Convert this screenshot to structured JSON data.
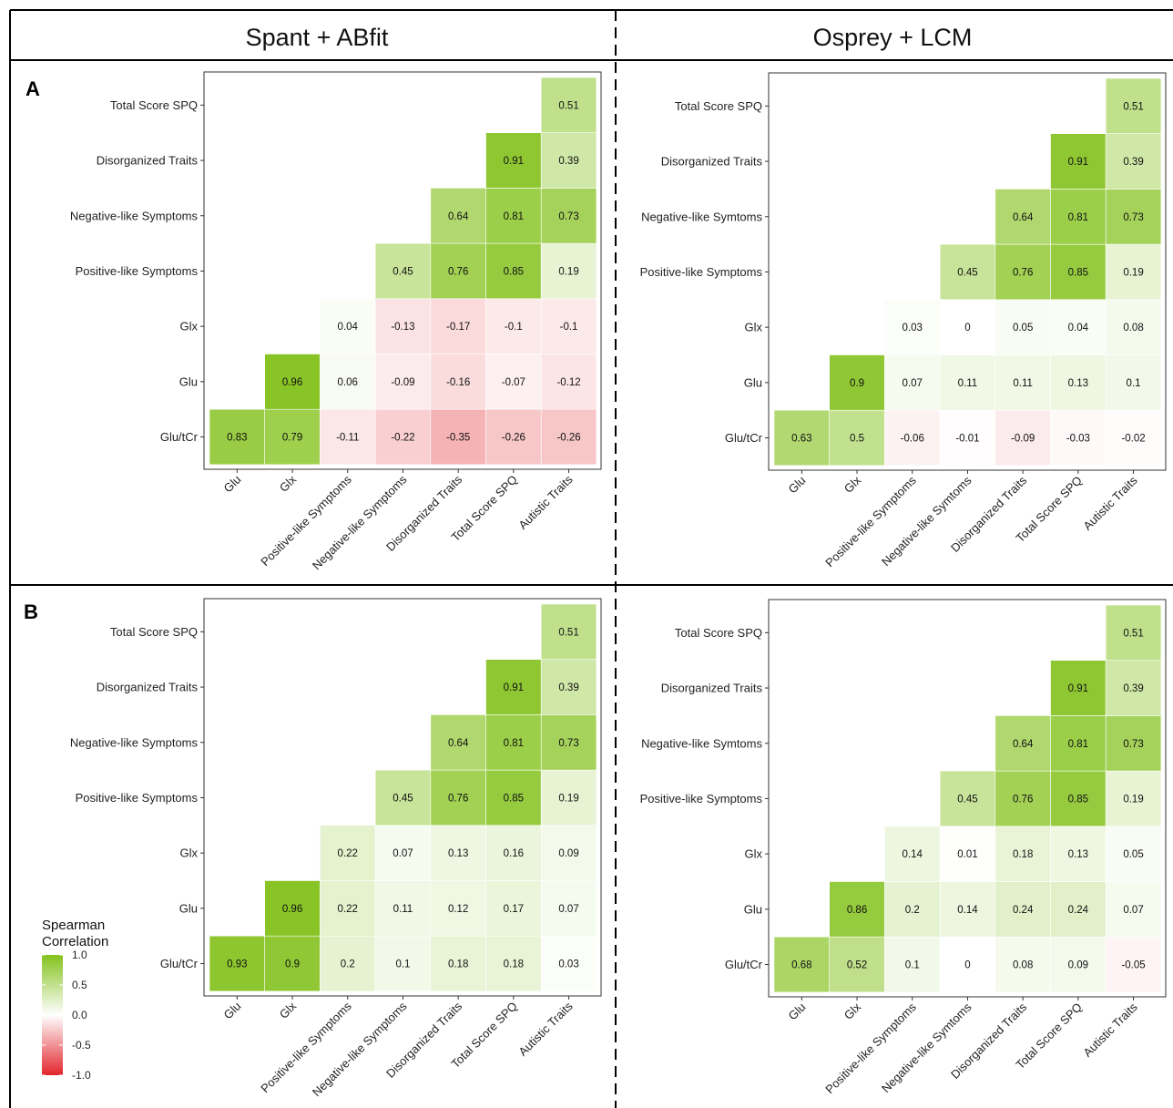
{
  "column_titles": [
    "Spant + ABfit",
    "Osprey + LCM"
  ],
  "row_labels": [
    "A",
    "B"
  ],
  "legend": {
    "title_line1": "Spearman",
    "title_line2": "Correlation",
    "ticks": [
      "1.0",
      "0.5",
      "0.0",
      "-0.5",
      "-1.0"
    ],
    "colors": {
      "high": "#84c21e",
      "mid": "#ffffff",
      "low": "#e2262d"
    }
  },
  "chart_data": [
    {
      "type": "heatmap",
      "panel": "A",
      "column": "Spant + ABfit",
      "x_labels": [
        "Glu",
        "Glx",
        "Positive-like Symptoms",
        "Negative-like Symptoms",
        "Disorganized Traits",
        "Total Score SPQ",
        "Autistic Traits"
      ],
      "y_labels": [
        "Glu/tCr",
        "Glu",
        "Glx",
        "Positive-like Symptoms",
        "Negative-like Symptoms",
        "Disorganized Traits",
        "Total Score SPQ"
      ],
      "values": [
        [
          0.83,
          0.79,
          -0.11,
          -0.22,
          -0.35,
          -0.26,
          -0.26
        ],
        [
          null,
          0.96,
          0.06,
          -0.09,
          -0.16,
          -0.07,
          -0.12
        ],
        [
          null,
          null,
          0.04,
          -0.13,
          -0.17,
          -0.1,
          -0.1
        ],
        [
          null,
          null,
          null,
          0.45,
          0.76,
          0.85,
          0.19
        ],
        [
          null,
          null,
          null,
          null,
          0.64,
          0.81,
          0.73
        ],
        [
          null,
          null,
          null,
          null,
          null,
          0.91,
          0.39
        ],
        [
          null,
          null,
          null,
          null,
          null,
          null,
          0.51
        ]
      ],
      "value_range": [
        -1,
        1
      ]
    },
    {
      "type": "heatmap",
      "panel": "A",
      "column": "Osprey + LCM",
      "x_labels": [
        "Glu",
        "Glx",
        "Positive-like Symptoms",
        "Negative-like Symtoms",
        "Disorganized Traits",
        "Total Score SPQ",
        "Autistic Traits"
      ],
      "y_labels": [
        "Glu/tCr",
        "Glu",
        "Glx",
        "Positive-like Symptoms",
        "Negative-like Symtoms",
        "Disorganized Traits",
        "Total Score SPQ"
      ],
      "values": [
        [
          0.63,
          0.5,
          -0.06,
          -0.01,
          -0.09,
          -0.03,
          -0.02
        ],
        [
          null,
          0.9,
          0.07,
          0.11,
          0.11,
          0.13,
          0.1
        ],
        [
          null,
          null,
          0.03,
          0,
          0.05,
          0.04,
          0.08
        ],
        [
          null,
          null,
          null,
          0.45,
          0.76,
          0.85,
          0.19
        ],
        [
          null,
          null,
          null,
          null,
          0.64,
          0.81,
          0.73
        ],
        [
          null,
          null,
          null,
          null,
          null,
          0.91,
          0.39
        ],
        [
          null,
          null,
          null,
          null,
          null,
          null,
          0.51
        ]
      ],
      "value_range": [
        -1,
        1
      ]
    },
    {
      "type": "heatmap",
      "panel": "B",
      "column": "Spant + ABfit",
      "x_labels": [
        "Glu",
        "Glx",
        "Positive-like Symptoms",
        "Negative-like Symptoms",
        "Disorganized Traits",
        "Total Score SPQ",
        "Autistic Traits"
      ],
      "y_labels": [
        "Glu/tCr",
        "Glu",
        "Glx",
        "Positive-like Symptoms",
        "Negative-like Symptoms",
        "Disorganized Traits",
        "Total Score SPQ"
      ],
      "values": [
        [
          0.93,
          0.9,
          0.2,
          0.1,
          0.18,
          0.18,
          0.03
        ],
        [
          null,
          0.96,
          0.22,
          0.11,
          0.12,
          0.17,
          0.07
        ],
        [
          null,
          null,
          0.22,
          0.07,
          0.13,
          0.16,
          0.09
        ],
        [
          null,
          null,
          null,
          0.45,
          0.76,
          0.85,
          0.19
        ],
        [
          null,
          null,
          null,
          null,
          0.64,
          0.81,
          0.73
        ],
        [
          null,
          null,
          null,
          null,
          null,
          0.91,
          0.39
        ],
        [
          null,
          null,
          null,
          null,
          null,
          null,
          0.51
        ]
      ],
      "value_range": [
        -1,
        1
      ]
    },
    {
      "type": "heatmap",
      "panel": "B",
      "column": "Osprey + LCM",
      "x_labels": [
        "Glu",
        "Glx",
        "Positive-like Symptoms",
        "Negative-like Symtoms",
        "Disorganized Traits",
        "Total Score SPQ",
        "Autistic Traits"
      ],
      "y_labels": [
        "Glu/tCr",
        "Glu",
        "Glx",
        "Positive-like Symptoms",
        "Negative-like Symtoms",
        "Disorganized Traits",
        "Total Score SPQ"
      ],
      "values": [
        [
          0.68,
          0.52,
          0.1,
          0,
          0.08,
          0.09,
          -0.05
        ],
        [
          null,
          0.86,
          0.2,
          0.14,
          0.24,
          0.24,
          0.07
        ],
        [
          null,
          null,
          0.14,
          0.01,
          0.18,
          0.13,
          0.05
        ],
        [
          null,
          null,
          null,
          0.45,
          0.76,
          0.85,
          0.19
        ],
        [
          null,
          null,
          null,
          null,
          0.64,
          0.81,
          0.73
        ],
        [
          null,
          null,
          null,
          null,
          null,
          0.91,
          0.39
        ],
        [
          null,
          null,
          null,
          null,
          null,
          null,
          0.51
        ]
      ],
      "value_range": [
        -1,
        1
      ]
    }
  ]
}
